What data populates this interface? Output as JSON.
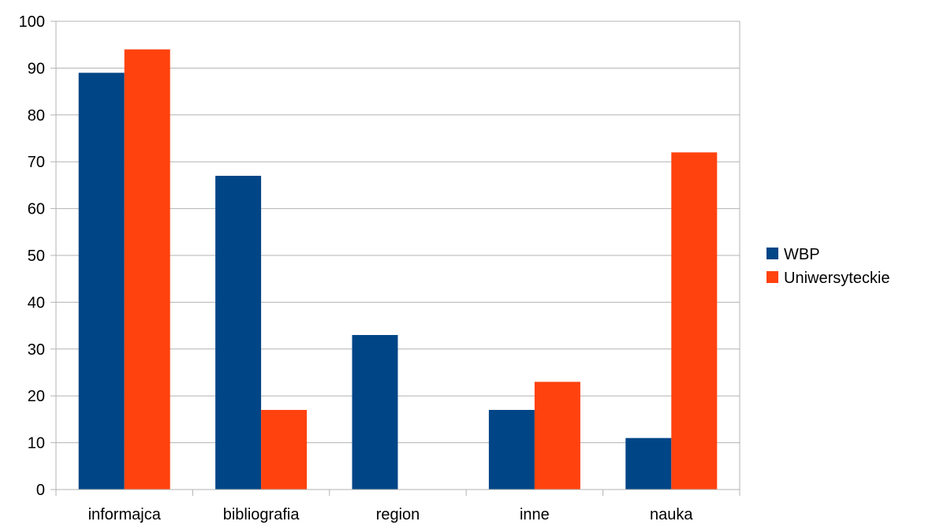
{
  "chart_data": {
    "type": "bar",
    "categories": [
      "informajca",
      "bibliografia",
      "region",
      "inne",
      "nauka"
    ],
    "series": [
      {
        "name": "WBP",
        "color": "#004586",
        "values": [
          89,
          67,
          33,
          17,
          11
        ]
      },
      {
        "name": "Uniwersyteckie",
        "color": "#ff420e",
        "values": [
          94,
          17,
          0,
          23,
          72
        ]
      }
    ],
    "ylim": [
      0,
      100
    ],
    "yticks": [
      0,
      10,
      20,
      30,
      40,
      50,
      60,
      70,
      80,
      90,
      100
    ],
    "grid": true,
    "legend_position": "right",
    "title": "",
    "xlabel": "",
    "ylabel": ""
  }
}
